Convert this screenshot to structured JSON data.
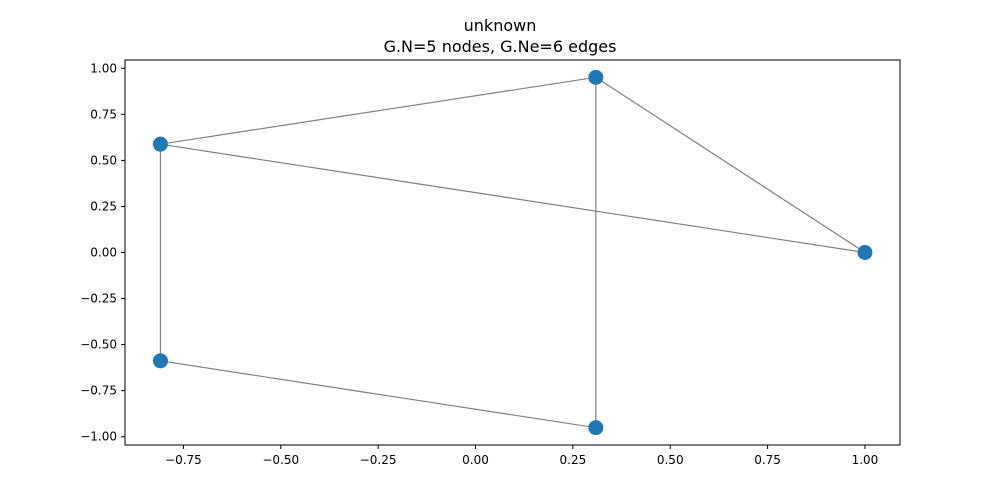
{
  "chart_data": {
    "type": "scatter",
    "title": "unknown",
    "subtitle": "G.N=5 nodes, G.Ne=6 edges",
    "xlabel": "",
    "ylabel": "",
    "xlim": [
      -0.9,
      1.09
    ],
    "ylim": [
      -1.045,
      1.045
    ],
    "xticks": [
      -0.75,
      -0.5,
      -0.25,
      0.0,
      0.25,
      0.5,
      0.75,
      1.0
    ],
    "xtick_labels": [
      "−0.75",
      "−0.50",
      "−0.25",
      "0.00",
      "0.25",
      "0.50",
      "0.75",
      "1.00"
    ],
    "yticks": [
      -1.0,
      -0.75,
      -0.5,
      -0.25,
      0.0,
      0.25,
      0.5,
      0.75,
      1.0
    ],
    "ytick_labels": [
      "−1.00",
      "−0.75",
      "−0.50",
      "−0.25",
      "0.00",
      "0.25",
      "0.50",
      "0.75",
      "1.00"
    ],
    "grid": false,
    "node_color": "#1f77b4",
    "edge_color": "#808080",
    "nodes": [
      {
        "x": 1.0,
        "y": 0.0
      },
      {
        "x": 0.309,
        "y": 0.951
      },
      {
        "x": -0.809,
        "y": 0.588
      },
      {
        "x": -0.809,
        "y": -0.588
      },
      {
        "x": 0.309,
        "y": -0.951
      }
    ],
    "edges": [
      [
        0,
        1
      ],
      [
        0,
        2
      ],
      [
        1,
        2
      ],
      [
        1,
        4
      ],
      [
        2,
        3
      ],
      [
        3,
        4
      ]
    ]
  }
}
